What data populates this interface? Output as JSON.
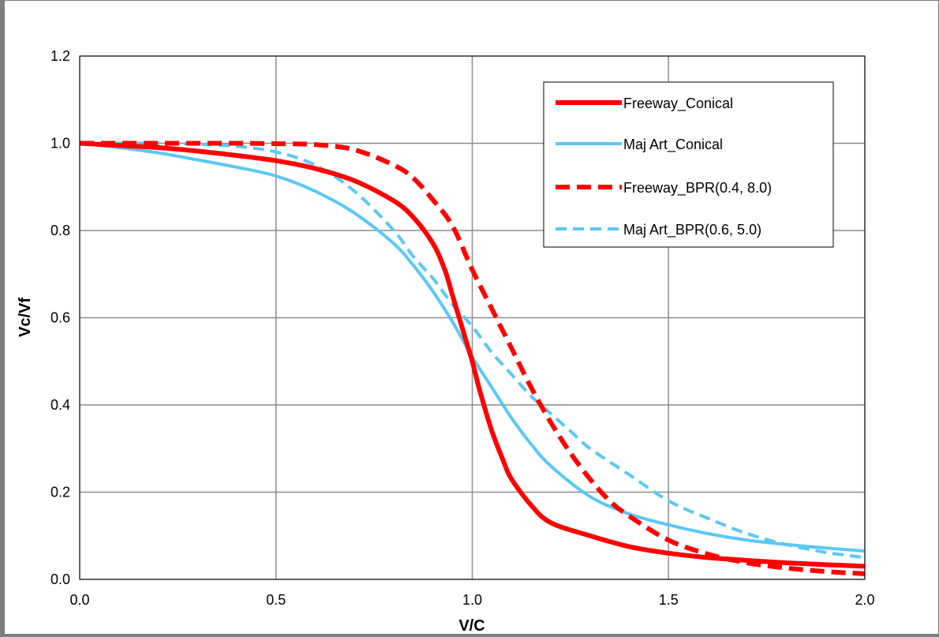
{
  "chart_data": {
    "type": "line",
    "title": "",
    "xlabel": "V/C",
    "ylabel": "Vc/Vf",
    "xlim": [
      0,
      2
    ],
    "ylim": [
      0,
      1.2
    ],
    "x_ticks": [
      "0.0",
      "0.5",
      "1.0",
      "1.5",
      "2.0"
    ],
    "y_ticks": [
      "0.0",
      "0.2",
      "0.4",
      "0.6",
      "0.8",
      "1.0",
      "1.2"
    ],
    "grid": true,
    "legend_position": "top-right",
    "series": [
      {
        "name": "Freeway_Conical",
        "color": "#ff0000",
        "style": "solid-thick",
        "x": [
          0,
          0.1,
          0.2,
          0.3,
          0.4,
          0.5,
          0.6,
          0.7,
          0.8,
          0.85,
          0.9,
          0.93,
          0.95,
          0.97,
          0.99,
          1.0,
          1.02,
          1.05,
          1.08,
          1.1,
          1.15,
          1.2,
          1.3,
          1.4,
          1.5,
          1.6,
          1.8,
          2.0
        ],
        "y": [
          1.0,
          0.995,
          0.99,
          0.982,
          0.972,
          0.96,
          0.942,
          0.914,
          0.868,
          0.83,
          0.77,
          0.71,
          0.65,
          0.59,
          0.53,
          0.5,
          0.43,
          0.34,
          0.27,
          0.23,
          0.17,
          0.13,
          0.1,
          0.075,
          0.06,
          0.05,
          0.038,
          0.03
        ]
      },
      {
        "name": "Maj Art_Conical",
        "color": "#5bc8f5",
        "style": "solid",
        "x": [
          0,
          0.1,
          0.2,
          0.3,
          0.4,
          0.5,
          0.6,
          0.7,
          0.8,
          0.85,
          0.9,
          0.95,
          1.0,
          1.05,
          1.1,
          1.15,
          1.2,
          1.3,
          1.4,
          1.5,
          1.6,
          1.7,
          1.8,
          1.9,
          2.0
        ],
        "y": [
          1.0,
          0.99,
          0.978,
          0.962,
          0.945,
          0.925,
          0.89,
          0.84,
          0.77,
          0.72,
          0.66,
          0.59,
          0.51,
          0.44,
          0.37,
          0.31,
          0.26,
          0.19,
          0.15,
          0.125,
          0.105,
          0.09,
          0.08,
          0.072,
          0.065
        ]
      },
      {
        "name": "Freeway_BPR(0.4, 8.0)",
        "color": "#ff0000",
        "style": "dashed-thick",
        "x": [
          0,
          0.1,
          0.2,
          0.3,
          0.4,
          0.5,
          0.6,
          0.7,
          0.8,
          0.85,
          0.9,
          0.95,
          1.0,
          1.05,
          1.1,
          1.15,
          1.2,
          1.25,
          1.3,
          1.35,
          1.4,
          1.5,
          1.6,
          1.7,
          1.8,
          1.9,
          2.0
        ],
        "y": [
          1.0,
          1.0,
          1.0,
          1.0,
          1.0,
          0.999,
          0.997,
          0.985,
          0.95,
          0.92,
          0.87,
          0.81,
          0.71,
          0.62,
          0.53,
          0.44,
          0.36,
          0.29,
          0.23,
          0.18,
          0.145,
          0.09,
          0.058,
          0.038,
          0.026,
          0.018,
          0.013
        ]
      },
      {
        "name": "Maj Art_BPR(0.6, 5.0)",
        "color": "#5bc8f5",
        "style": "dashed",
        "x": [
          0,
          0.1,
          0.2,
          0.3,
          0.4,
          0.5,
          0.6,
          0.7,
          0.8,
          0.85,
          0.9,
          0.95,
          1.0,
          1.05,
          1.1,
          1.15,
          1.2,
          1.25,
          1.3,
          1.4,
          1.5,
          1.6,
          1.7,
          1.8,
          1.9,
          2.0
        ],
        "y": [
          1.0,
          1.0,
          1.0,
          0.998,
          0.993,
          0.98,
          0.95,
          0.89,
          0.8,
          0.74,
          0.69,
          0.63,
          0.58,
          0.52,
          0.47,
          0.42,
          0.38,
          0.34,
          0.3,
          0.24,
          0.18,
          0.14,
          0.105,
          0.08,
          0.062,
          0.05
        ]
      }
    ]
  }
}
